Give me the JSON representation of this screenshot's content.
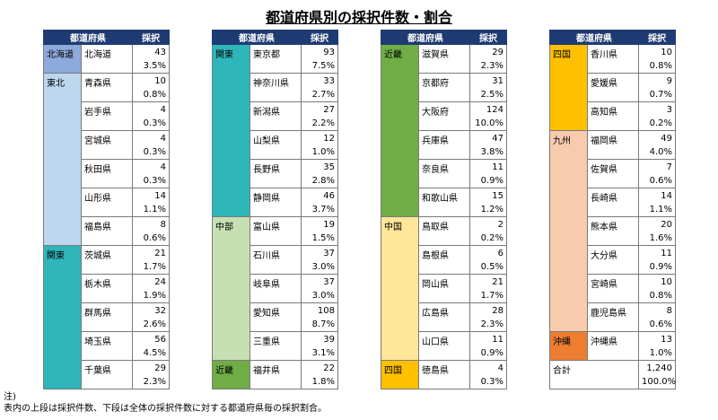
{
  "title": "都道府県別の採択件数・割合",
  "header": {
    "region_col": "都道府県",
    "count_col": "採択"
  },
  "tables": [
    {
      "groups": [
        {
          "region": "北海道",
          "color": "#8ea9db",
          "rows": [
            {
              "pref": "北海道",
              "count": "43",
              "pct": "3.5%"
            }
          ]
        },
        {
          "region": "東北",
          "color": "#bdd7ee",
          "rows": [
            {
              "pref": "青森県",
              "count": "10",
              "pct": "0.8%"
            },
            {
              "pref": "岩手県",
              "count": "4",
              "pct": "0.3%"
            },
            {
              "pref": "宮城県",
              "count": "4",
              "pct": "0.3%"
            },
            {
              "pref": "秋田県",
              "count": "4",
              "pct": "0.3%"
            },
            {
              "pref": "山形県",
              "count": "14",
              "pct": "1.1%"
            },
            {
              "pref": "福島県",
              "count": "8",
              "pct": "0.6%"
            }
          ]
        },
        {
          "region": "関東",
          "color": "#2fb6bb",
          "rows": [
            {
              "pref": "茨城県",
              "count": "21",
              "pct": "1.7%"
            },
            {
              "pref": "栃木県",
              "count": "24",
              "pct": "1.9%"
            },
            {
              "pref": "群馬県",
              "count": "32",
              "pct": "2.6%"
            },
            {
              "pref": "埼玉県",
              "count": "56",
              "pct": "4.5%"
            },
            {
              "pref": "千葉県",
              "count": "29",
              "pct": "2.3%"
            }
          ]
        }
      ]
    },
    {
      "groups": [
        {
          "region": "関東",
          "color": "#2fb6bb",
          "rows": [
            {
              "pref": "東京都",
              "count": "93",
              "pct": "7.5%"
            },
            {
              "pref": "神奈川県",
              "count": "33",
              "pct": "2.7%"
            },
            {
              "pref": "新潟県",
              "count": "27",
              "pct": "2.2%"
            },
            {
              "pref": "山梨県",
              "count": "12",
              "pct": "1.0%"
            },
            {
              "pref": "長野県",
              "count": "35",
              "pct": "2.8%"
            },
            {
              "pref": "静岡県",
              "count": "46",
              "pct": "3.7%"
            }
          ]
        },
        {
          "region": "中部",
          "color": "#c6e0b4",
          "rows": [
            {
              "pref": "富山県",
              "count": "19",
              "pct": "1.5%"
            },
            {
              "pref": "石川県",
              "count": "37",
              "pct": "3.0%"
            },
            {
              "pref": "岐阜県",
              "count": "37",
              "pct": "3.0%"
            },
            {
              "pref": "愛知県",
              "count": "108",
              "pct": "8.7%"
            },
            {
              "pref": "三重県",
              "count": "39",
              "pct": "3.1%"
            }
          ]
        },
        {
          "region": "近畿",
          "color": "#70ad47",
          "rows": [
            {
              "pref": "福井県",
              "count": "22",
              "pct": "1.8%"
            }
          ]
        }
      ]
    },
    {
      "groups": [
        {
          "region": "近畿",
          "color": "#70ad47",
          "rows": [
            {
              "pref": "滋賀県",
              "count": "29",
              "pct": "2.3%"
            },
            {
              "pref": "京都府",
              "count": "31",
              "pct": "2.5%"
            },
            {
              "pref": "大阪府",
              "count": "124",
              "pct": "10.0%"
            },
            {
              "pref": "兵庫県",
              "count": "47",
              "pct": "3.8%"
            },
            {
              "pref": "奈良県",
              "count": "11",
              "pct": "0.9%"
            },
            {
              "pref": "和歌山県",
              "count": "15",
              "pct": "1.2%"
            }
          ]
        },
        {
          "region": "中国",
          "color": "#ffe699",
          "rows": [
            {
              "pref": "鳥取県",
              "count": "2",
              "pct": "0.2%"
            },
            {
              "pref": "島根県",
              "count": "6",
              "pct": "0.5%"
            },
            {
              "pref": "岡山県",
              "count": "21",
              "pct": "1.7%"
            },
            {
              "pref": "広島県",
              "count": "28",
              "pct": "2.3%"
            },
            {
              "pref": "山口県",
              "count": "11",
              "pct": "0.9%"
            }
          ]
        },
        {
          "region": "四国",
          "color": "#ffc000",
          "rows": [
            {
              "pref": "徳島県",
              "count": "4",
              "pct": "0.3%"
            }
          ]
        }
      ]
    },
    {
      "groups": [
        {
          "region": "四国",
          "color": "#ffc000",
          "rows": [
            {
              "pref": "香川県",
              "count": "10",
              "pct": "0.8%"
            },
            {
              "pref": "愛媛県",
              "count": "9",
              "pct": "0.7%"
            },
            {
              "pref": "高知県",
              "count": "3",
              "pct": "0.2%"
            }
          ]
        },
        {
          "region": "九州",
          "color": "#f8cbad",
          "rows": [
            {
              "pref": "福岡県",
              "count": "49",
              "pct": "4.0%"
            },
            {
              "pref": "佐賀県",
              "count": "7",
              "pct": "0.6%"
            },
            {
              "pref": "長崎県",
              "count": "14",
              "pct": "1.1%"
            },
            {
              "pref": "熊本県",
              "count": "20",
              "pct": "1.6%"
            },
            {
              "pref": "大分県",
              "count": "11",
              "pct": "0.9%"
            },
            {
              "pref": "宮崎県",
              "count": "10",
              "pct": "0.8%"
            },
            {
              "pref": "鹿児島県",
              "count": "8",
              "pct": "0.6%"
            }
          ]
        },
        {
          "region": "沖縄",
          "color": "#ed7d31",
          "rows": [
            {
              "pref": "沖縄県",
              "count": "13",
              "pct": "1.0%"
            }
          ]
        }
      ],
      "total": {
        "label": "合計",
        "count": "1,240",
        "pct": "100.0%"
      }
    }
  ],
  "note": {
    "line1": "注)",
    "line2": "表内の上段は採択件数、下段は全体の採択件数に対する都道府県毎の採択割合。"
  }
}
